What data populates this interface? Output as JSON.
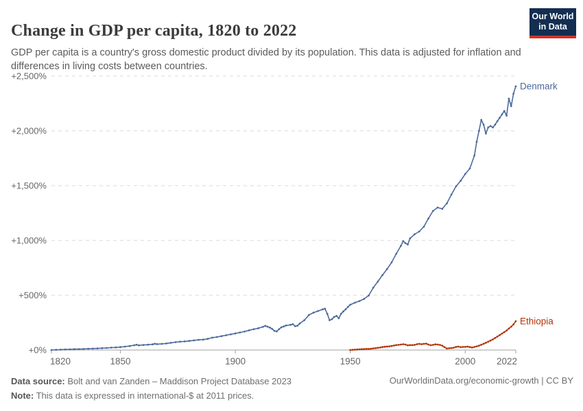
{
  "header": {
    "title": "Change in GDP per capita, 1820 to 2022",
    "subtitle": "GDP per capita is a country's gross domestic product divided by its population. This data is adjusted for inflation and differences in living costs between countries.",
    "logo": {
      "line1": "Our World",
      "line2": "in Data"
    }
  },
  "footer": {
    "source_label": "Data source:",
    "source_text": " Bolt and van Zanden – Maddison Project Database 2023",
    "note_label": "Note:",
    "note_text": " This data is expressed in international-$ at 2011 prices.",
    "credit": "OurWorldinData.org/economic-growth | CC BY"
  },
  "colors": {
    "denmark": "#4C6A9C",
    "ethiopia": "#B13507",
    "gridline": "#dadada",
    "axis": "#a1a1a1",
    "tick_text": "#666666",
    "logo_bg": "#142e52",
    "logo_stripe": "#d13328"
  },
  "chart_data": {
    "type": "line",
    "title": "Change in GDP per capita, 1820 to 2022",
    "xlabel": "",
    "ylabel": "",
    "x_range": [
      1820,
      2022
    ],
    "ylim": [
      0,
      2500
    ],
    "grid": "horizontal dashed",
    "legend": "end-of-line labels",
    "y_ticks": [
      {
        "value": 0,
        "label": "+0%"
      },
      {
        "value": 500,
        "label": "+500%"
      },
      {
        "value": 1000,
        "label": "+1,000%"
      },
      {
        "value": 1500,
        "label": "+1,500%"
      },
      {
        "value": 2000,
        "label": "+2,000%"
      },
      {
        "value": 2500,
        "label": "+2,500%"
      }
    ],
    "x_ticks": [
      {
        "value": 1820,
        "label": "1820"
      },
      {
        "value": 1850,
        "label": "1850"
      },
      {
        "value": 1900,
        "label": "1900"
      },
      {
        "value": 1950,
        "label": "1950"
      },
      {
        "value": 2000,
        "label": "2000"
      },
      {
        "value": 2022,
        "label": "2022"
      }
    ],
    "series": [
      {
        "name": "Denmark",
        "color": "#4C6A9C",
        "points": [
          [
            1820,
            0
          ],
          [
            1822,
            2
          ],
          [
            1824,
            4
          ],
          [
            1826,
            5
          ],
          [
            1828,
            6
          ],
          [
            1830,
            8
          ],
          [
            1832,
            9
          ],
          [
            1834,
            10
          ],
          [
            1836,
            12
          ],
          [
            1838,
            13
          ],
          [
            1840,
            15
          ],
          [
            1842,
            17
          ],
          [
            1844,
            19
          ],
          [
            1846,
            22
          ],
          [
            1848,
            24
          ],
          [
            1850,
            27
          ],
          [
            1852,
            31
          ],
          [
            1854,
            36
          ],
          [
            1856,
            44
          ],
          [
            1857,
            48
          ],
          [
            1858,
            43
          ],
          [
            1860,
            46
          ],
          [
            1862,
            49
          ],
          [
            1864,
            52
          ],
          [
            1865,
            57
          ],
          [
            1866,
            54
          ],
          [
            1868,
            56
          ],
          [
            1870,
            60
          ],
          [
            1872,
            66
          ],
          [
            1874,
            72
          ],
          [
            1876,
            76
          ],
          [
            1878,
            79
          ],
          [
            1880,
            83
          ],
          [
            1882,
            88
          ],
          [
            1884,
            93
          ],
          [
            1886,
            95
          ],
          [
            1888,
            102
          ],
          [
            1890,
            113
          ],
          [
            1892,
            119
          ],
          [
            1894,
            127
          ],
          [
            1896,
            135
          ],
          [
            1898,
            143
          ],
          [
            1900,
            151
          ],
          [
            1902,
            160
          ],
          [
            1904,
            169
          ],
          [
            1906,
            180
          ],
          [
            1908,
            190
          ],
          [
            1910,
            199
          ],
          [
            1912,
            212
          ],
          [
            1913,
            220
          ],
          [
            1914,
            213
          ],
          [
            1915,
            205
          ],
          [
            1916,
            193
          ],
          [
            1917,
            175
          ],
          [
            1918,
            170
          ],
          [
            1919,
            190
          ],
          [
            1920,
            207
          ],
          [
            1921,
            215
          ],
          [
            1922,
            224
          ],
          [
            1924,
            230
          ],
          [
            1925,
            236
          ],
          [
            1926,
            218
          ],
          [
            1927,
            222
          ],
          [
            1928,
            242
          ],
          [
            1930,
            272
          ],
          [
            1932,
            320
          ],
          [
            1934,
            341
          ],
          [
            1936,
            356
          ],
          [
            1938,
            371
          ],
          [
            1939,
            377
          ],
          [
            1940,
            330
          ],
          [
            1941,
            272
          ],
          [
            1942,
            281
          ],
          [
            1943,
            302
          ],
          [
            1944,
            311
          ],
          [
            1945,
            290
          ],
          [
            1946,
            331
          ],
          [
            1947,
            352
          ],
          [
            1948,
            372
          ],
          [
            1949,
            394
          ],
          [
            1950,
            413
          ],
          [
            1952,
            432
          ],
          [
            1954,
            447
          ],
          [
            1956,
            466
          ],
          [
            1958,
            497
          ],
          [
            1960,
            569
          ],
          [
            1962,
            625
          ],
          [
            1964,
            684
          ],
          [
            1966,
            738
          ],
          [
            1968,
            800
          ],
          [
            1970,
            878
          ],
          [
            1972,
            950
          ],
          [
            1973,
            994
          ],
          [
            1974,
            975
          ],
          [
            1975,
            963
          ],
          [
            1976,
            1019
          ],
          [
            1978,
            1056
          ],
          [
            1980,
            1081
          ],
          [
            1982,
            1125
          ],
          [
            1984,
            1200
          ],
          [
            1986,
            1269
          ],
          [
            1988,
            1300
          ],
          [
            1990,
            1288
          ],
          [
            1992,
            1338
          ],
          [
            1994,
            1419
          ],
          [
            1996,
            1494
          ],
          [
            1998,
            1544
          ],
          [
            2000,
            1606
          ],
          [
            2002,
            1656
          ],
          [
            2004,
            1775
          ],
          [
            2005,
            1900
          ],
          [
            2006,
            2000
          ],
          [
            2007,
            2100
          ],
          [
            2008,
            2056
          ],
          [
            2009,
            1975
          ],
          [
            2010,
            2031
          ],
          [
            2011,
            2044
          ],
          [
            2012,
            2031
          ],
          [
            2013,
            2056
          ],
          [
            2014,
            2088
          ],
          [
            2015,
            2119
          ],
          [
            2016,
            2150
          ],
          [
            2017,
            2181
          ],
          [
            2018,
            2138
          ],
          [
            2019,
            2294
          ],
          [
            2020,
            2225
          ],
          [
            2021,
            2338
          ],
          [
            2022,
            2406
          ]
        ]
      },
      {
        "name": "Ethiopia",
        "color": "#B13507",
        "points": [
          [
            1950,
            0
          ],
          [
            1951,
            2
          ],
          [
            1952,
            4
          ],
          [
            1953,
            5
          ],
          [
            1954,
            6
          ],
          [
            1955,
            8
          ],
          [
            1956,
            9
          ],
          [
            1957,
            10
          ],
          [
            1958,
            10
          ],
          [
            1959,
            12
          ],
          [
            1960,
            15
          ],
          [
            1961,
            17
          ],
          [
            1962,
            20
          ],
          [
            1963,
            23
          ],
          [
            1964,
            27
          ],
          [
            1965,
            30
          ],
          [
            1966,
            32
          ],
          [
            1967,
            34
          ],
          [
            1968,
            37
          ],
          [
            1969,
            41
          ],
          [
            1970,
            45
          ],
          [
            1971,
            47
          ],
          [
            1972,
            50
          ],
          [
            1973,
            53
          ],
          [
            1974,
            50
          ],
          [
            1975,
            43
          ],
          [
            1976,
            45
          ],
          [
            1977,
            45
          ],
          [
            1978,
            47
          ],
          [
            1979,
            53
          ],
          [
            1980,
            56
          ],
          [
            1981,
            53
          ],
          [
            1982,
            56
          ],
          [
            1983,
            59
          ],
          [
            1984,
            50
          ],
          [
            1985,
            44
          ],
          [
            1986,
            47
          ],
          [
            1987,
            52
          ],
          [
            1988,
            50
          ],
          [
            1989,
            47
          ],
          [
            1990,
            40
          ],
          [
            1991,
            26
          ],
          [
            1992,
            14
          ],
          [
            1993,
            16
          ],
          [
            1994,
            18
          ],
          [
            1995,
            21
          ],
          [
            1996,
            29
          ],
          [
            1997,
            31
          ],
          [
            1998,
            26
          ],
          [
            1999,
            28
          ],
          [
            2000,
            29
          ],
          [
            2001,
            31
          ],
          [
            2002,
            27
          ],
          [
            2003,
            23
          ],
          [
            2004,
            28
          ],
          [
            2005,
            34
          ],
          [
            2006,
            40
          ],
          [
            2007,
            48
          ],
          [
            2008,
            57
          ],
          [
            2009,
            66
          ],
          [
            2010,
            76
          ],
          [
            2011,
            86
          ],
          [
            2012,
            97
          ],
          [
            2013,
            110
          ],
          [
            2014,
            123
          ],
          [
            2015,
            136
          ],
          [
            2016,
            150
          ],
          [
            2017,
            164
          ],
          [
            2018,
            178
          ],
          [
            2019,
            196
          ],
          [
            2020,
            213
          ],
          [
            2021,
            233
          ],
          [
            2022,
            263
          ]
        ]
      }
    ]
  }
}
